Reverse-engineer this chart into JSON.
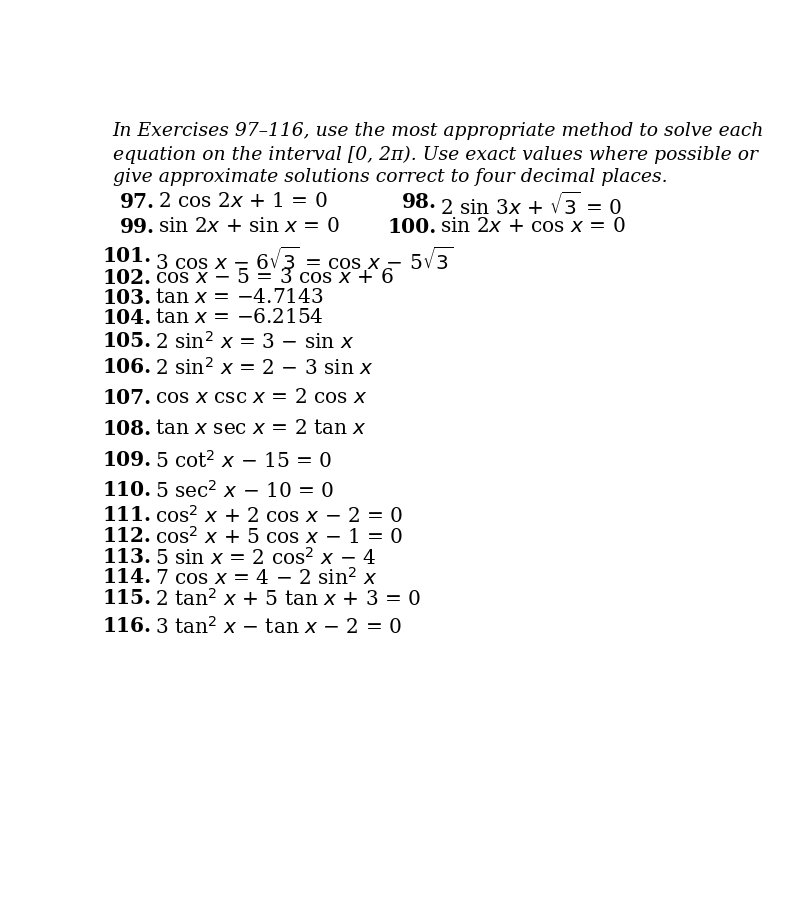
{
  "bg_color": "#ffffff",
  "text_color": "#000000",
  "intro_line1": "In Exercises 97–116, use the most appropriate method to solve each",
  "intro_line2": "equation on the interval [0, 2π). Use exact values where possible or",
  "intro_line3": "give approximate solutions correct to four decimal places.",
  "eq97": "2 cos 2$\\mathit{x}$ + 1 = 0",
  "eq98": "2 sin 3$\\mathit{x}$ + $\\sqrt{3}$ = 0",
  "eq99": "sin 2$\\mathit{x}$ + sin $\\mathit{x}$ = 0",
  "eq100": "sin 2$\\mathit{x}$ + cos $\\mathit{x}$ = 0",
  "eq101": "3 cos $\\mathit{x}$ − 6$\\sqrt{3}$ = cos $\\mathit{x}$ − 5$\\sqrt{3}$",
  "eq102": "cos $\\mathit{x}$ − 5 = 3 cos $\\mathit{x}$ + 6",
  "eq103": "tan $\\mathit{x}$ = −4.7143",
  "eq104": "tan $\\mathit{x}$ = −6.2154",
  "eq105": "2 sin$^2$ $\\mathit{x}$ = 3 − sin $\\mathit{x}$",
  "eq106": "2 sin$^2$ $\\mathit{x}$ = 2 − 3 sin $\\mathit{x}$",
  "eq107": "cos $\\mathit{x}$ csc $\\mathit{x}$ = 2 cos $\\mathit{x}$",
  "eq108": "tan $\\mathit{x}$ sec $\\mathit{x}$ = 2 tan $\\mathit{x}$",
  "eq109": "5 cot$^2$ $\\mathit{x}$ − 15 = 0",
  "eq110": "5 sec$^2$ $\\mathit{x}$ − 10 = 0",
  "eq111": "cos$^2$ $\\mathit{x}$ + 2 cos $\\mathit{x}$ − 2 = 0",
  "eq112": "cos$^2$ $\\mathit{x}$ + 5 cos $\\mathit{x}$ − 1 = 0",
  "eq113": "5 sin $\\mathit{x}$ = 2 cos$^2$ $\\mathit{x}$ − 4",
  "eq114": "7 cos $\\mathit{x}$ = 4 − 2 sin$^2$ $\\mathit{x}$",
  "eq115": "2 tan$^2$ $\\mathit{x}$ + 5 tan $\\mathit{x}$ + 3 = 0",
  "eq116": "3 tan$^2$ $\\mathit{x}$ − tan $\\mathit{x}$ − 2 = 0",
  "intro_fontsize": 13.5,
  "num_fontsize": 14.5,
  "eq_fontsize": 14.5
}
